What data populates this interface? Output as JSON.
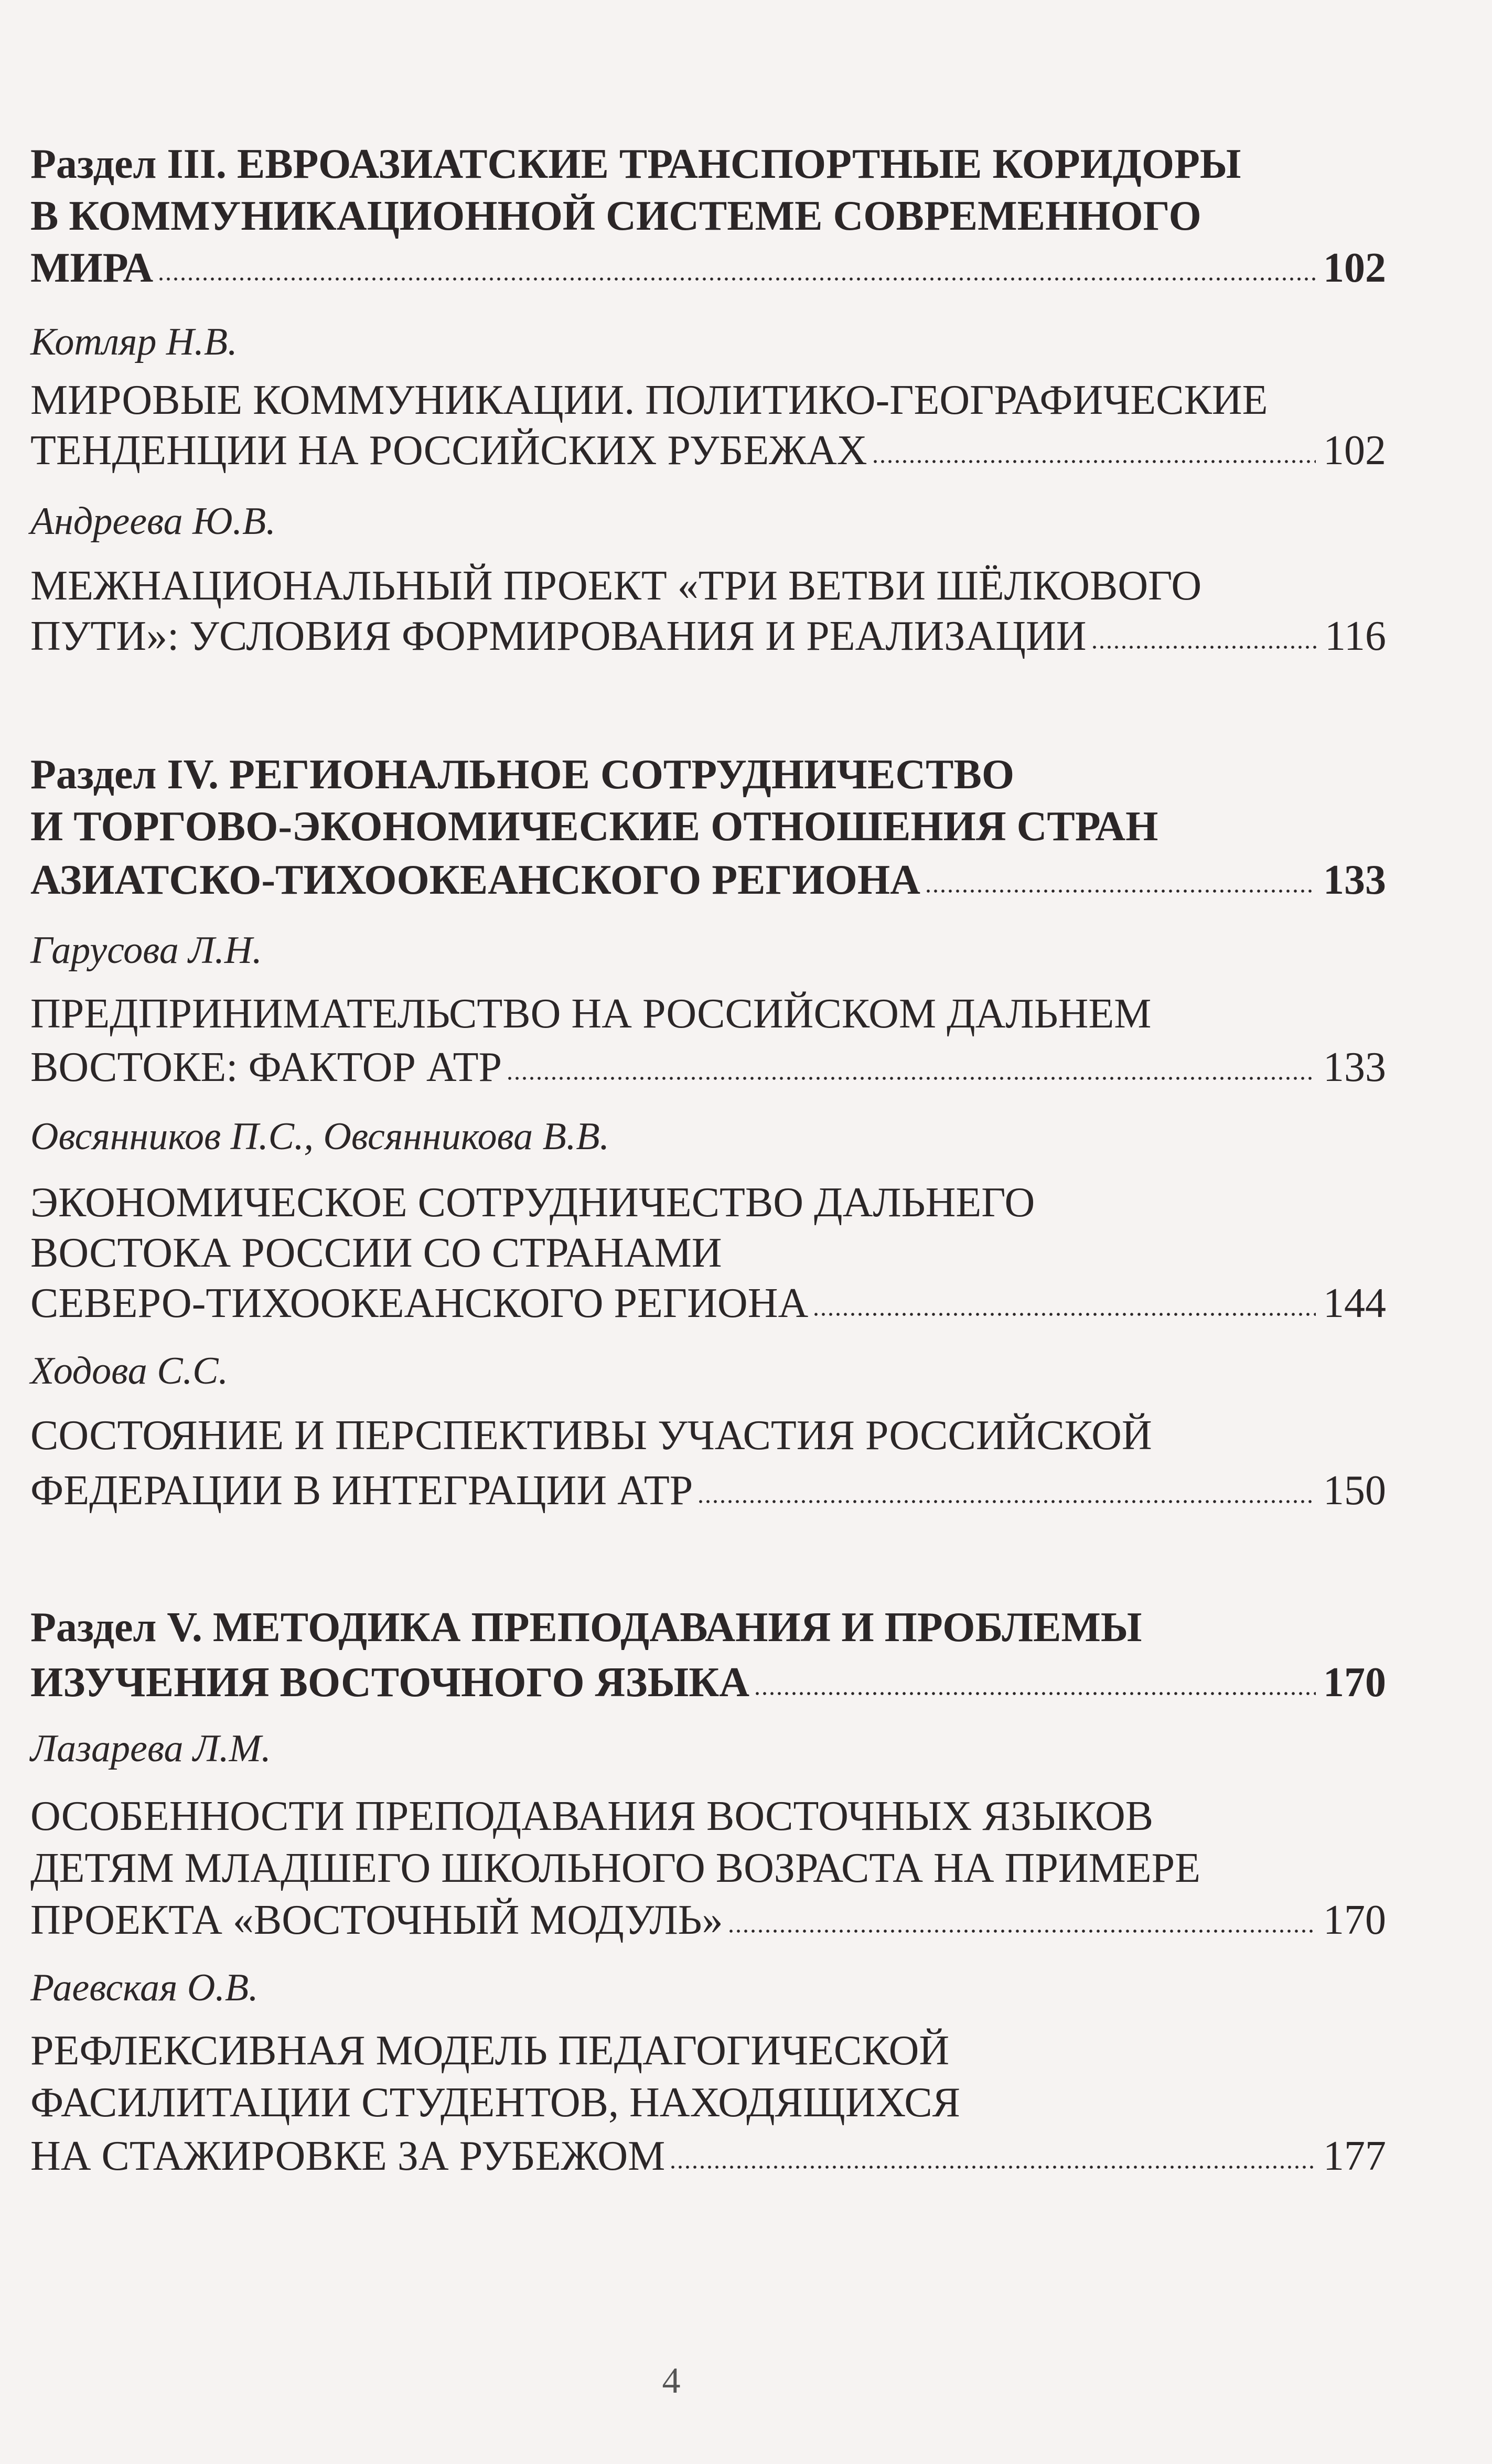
{
  "entries": [
    {
      "type": "section",
      "lines": [
        "Раздел III. ЕВРОАЗИАТСКИЕ ТРАНСПОРТНЫЕ КОРИДОРЫ",
        "В КОММУНИКАЦИОННОЙ СИСТЕМЕ СОВРЕМЕННОГО",
        "МИРА"
      ],
      "page": "102"
    },
    {
      "type": "author",
      "lines": [
        "Котляр Н.В."
      ]
    },
    {
      "type": "title",
      "lines": [
        "МИРОВЫЕ КОММУНИКАЦИИ. ПОЛИТИКО-ГЕОГРАФИЧЕСКИЕ",
        "ТЕНДЕНЦИИ НА РОССИЙСКИХ РУБЕЖАХ"
      ],
      "page": "102"
    },
    {
      "type": "author",
      "lines": [
        "Андреева Ю.В."
      ]
    },
    {
      "type": "title",
      "lines": [
        "МЕЖНАЦИОНАЛЬНЫЙ ПРОЕКТ  «ТРИ ВЕТВИ ШЁЛКОВОГО",
        "ПУТИ»:  УСЛОВИЯ ФОРМИРОВАНИЯ И РЕАЛИЗАЦИИ"
      ],
      "page": "116"
    },
    {
      "type": "section",
      "lines": [
        "Раздел IV. РЕГИОНАЛЬНОЕ  СОТРУДНИЧЕСТВО",
        "И ТОРГОВО-ЭКОНОМИЧЕСКИЕ ОТНОШЕНИЯ СТРАН",
        "АЗИАТСКО-ТИХООКЕАНСКОГО РЕГИОНА"
      ],
      "page": "133"
    },
    {
      "type": "author",
      "lines": [
        "Гарусова Л.Н."
      ]
    },
    {
      "type": "title",
      "lines": [
        "ПРЕДПРИНИМАТЕЛЬСТВО НА РОССИЙСКОМ ДАЛЬНЕМ",
        "ВОСТОКЕ: ФАКТОР АТР"
      ],
      "page": "133"
    },
    {
      "type": "author",
      "lines": [
        "Овсянников П.С., Овсянникова В.В."
      ]
    },
    {
      "type": "title",
      "lines": [
        "ЭКОНОМИЧЕСКОЕ СОТРУДНИЧЕСТВО ДАЛЬНЕГО",
        "ВОСТОКА РОССИИ СО СТРАНАМИ",
        "СЕВЕРО-ТИХООКЕАНСКОГО РЕГИОНА"
      ],
      "page": "144"
    },
    {
      "type": "author",
      "lines": [
        "Ходова С.С."
      ]
    },
    {
      "type": "title",
      "lines": [
        "СОСТОЯНИЕ И ПЕРСПЕКТИВЫ УЧАСТИЯ  РОССИЙСКОЙ",
        "ФЕДЕРАЦИИ В ИНТЕГРАЦИИ  АТР"
      ],
      "page": "150"
    },
    {
      "type": "section",
      "lines": [
        "Раздел V. МЕТОДИКА ПРЕПОДАВАНИЯ  И ПРОБЛЕМЫ",
        "ИЗУЧЕНИЯ ВОСТОЧНОГО  ЯЗЫКА"
      ],
      "page": "170"
    },
    {
      "type": "author",
      "lines": [
        "Лазарева Л.М."
      ]
    },
    {
      "type": "title",
      "lines": [
        "ОСОБЕННОСТИ ПРЕПОДАВАНИЯ  ВОСТОЧНЫХ ЯЗЫКОВ",
        "ДЕТЯМ МЛАДШЕГО  ШКОЛЬНОГО ВОЗРАСТА НА ПРИМЕРЕ",
        "ПРОЕКТА «ВОСТОЧНЫЙ МОДУЛЬ»"
      ],
      "page": "170"
    },
    {
      "type": "author",
      "lines": [
        "Раевская О.В."
      ]
    },
    {
      "type": "title",
      "lines": [
        "РЕФЛЕКСИВНАЯ МОДЕЛЬ  ПЕДАГОГИЧЕСКОЙ",
        "ФАСИЛИТАЦИИ  СТУДЕНТОВ, НАХОДЯЩИХСЯ",
        "НА СТАЖИРОВКЕ ЗА РУБЕЖОМ"
      ],
      "page": "177"
    }
  ],
  "page_number": "4"
}
